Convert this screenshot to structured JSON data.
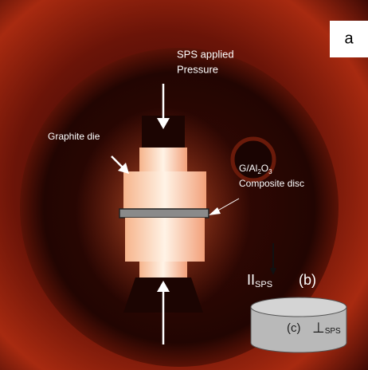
{
  "panel_label": "a",
  "pressure_label": {
    "line1": "SPS applied",
    "line2": "Pressure"
  },
  "die_label": "Graphite die",
  "disc_label": {
    "line1_parts": [
      "G/Al",
      "2",
      "O",
      "3"
    ],
    "line2": "Composite disc"
  },
  "inset": {
    "parallel_main": "II",
    "parallel_sub": "SPS",
    "b_label": "(b)",
    "c_label": "(c)",
    "perp_main": "⊥",
    "perp_sub": "SPS"
  }
}
